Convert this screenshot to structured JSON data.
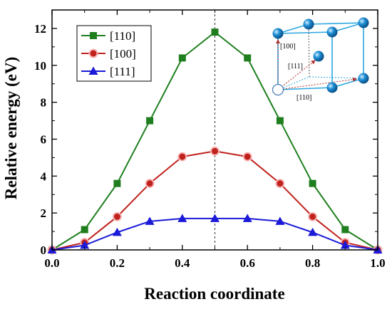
{
  "chart_data": {
    "type": "line",
    "title": "",
    "xlabel": "Reaction coordinate",
    "ylabel": "Relative energy (eV)",
    "xlim": [
      0.0,
      1.0
    ],
    "ylim": [
      0,
      13
    ],
    "x_ticks": [
      "0.0",
      "0.2",
      "0.4",
      "0.6",
      "0.8",
      "1.0"
    ],
    "y_ticks": [
      "0",
      "2",
      "4",
      "6",
      "8",
      "10",
      "12"
    ],
    "x": [
      0.0,
      0.1,
      0.2,
      0.3,
      0.4,
      0.5,
      0.6,
      0.7,
      0.8,
      0.9,
      1.0
    ],
    "series": [
      {
        "name": "[110]",
        "color": "#1f7f1f",
        "marker": "square",
        "values": [
          0.0,
          1.1,
          3.6,
          7.0,
          10.4,
          11.8,
          10.4,
          7.0,
          3.6,
          1.1,
          0.0
        ]
      },
      {
        "name": "[100]",
        "color": "#c0221d",
        "marker": "circle",
        "values": [
          0.0,
          0.4,
          1.8,
          3.6,
          5.05,
          5.35,
          5.05,
          3.6,
          1.8,
          0.4,
          0.0
        ]
      },
      {
        "name": "[111]",
        "color": "#1a1ad8",
        "marker": "triangle",
        "values": [
          0.0,
          0.25,
          0.95,
          1.55,
          1.7,
          1.7,
          1.7,
          1.55,
          0.95,
          0.25,
          0.0
        ]
      }
    ],
    "reference_line": {
      "x": 0.5,
      "style": "dotted"
    },
    "legend_position": "top-left",
    "grid": false
  },
  "inset": {
    "labels": [
      "[100]",
      "[111]",
      "[110]"
    ],
    "atom_color": "#1e8fd6",
    "edge_color": "#2aa7e0",
    "vacancy_color": "#ffffff",
    "arrow_color": "#b03030"
  }
}
